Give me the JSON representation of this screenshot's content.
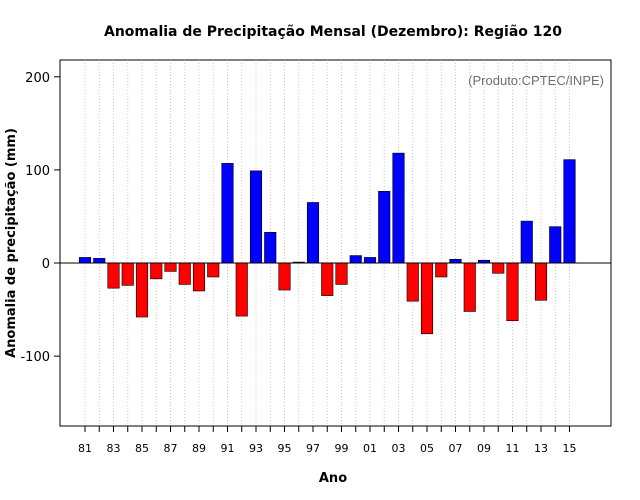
{
  "chart_data": {
    "type": "bar",
    "title": "Anomalia de Precipitação Mensal (Dezembro): Região 120",
    "xlabel": "Ano",
    "ylabel": "Anomalia de precipitação (mm)",
    "credit": "(Produto:CPTEC/INPE)",
    "ylim": [
      -175,
      218
    ],
    "yticks": [
      -100,
      0,
      100,
      200
    ],
    "ytick_labels": [
      "-100",
      "0",
      "100",
      "200"
    ],
    "xtick_labels": [
      "81",
      "83",
      "85",
      "87",
      "89",
      "91",
      "93",
      "95",
      "97",
      "99",
      "01",
      "03",
      "05",
      "07",
      "09",
      "11",
      "13",
      "15"
    ],
    "grid": true,
    "categories": [
      "1981",
      "1982",
      "1983",
      "1984",
      "1985",
      "1986",
      "1987",
      "1988",
      "1989",
      "1990",
      "1991",
      "1992",
      "1993",
      "1994",
      "1995",
      "1996",
      "1997",
      "1998",
      "1999",
      "2000",
      "2001",
      "2002",
      "2003",
      "2004",
      "2005",
      "2006",
      "2007",
      "2008",
      "2009",
      "2010",
      "2011",
      "2012",
      "2013",
      "2014",
      "2015"
    ],
    "values": [
      6,
      5,
      -27,
      -24,
      -58,
      -17,
      -9,
      -23,
      -30,
      -15,
      107,
      -57,
      99,
      33,
      -29,
      1,
      65,
      -35,
      -23,
      8,
      6,
      77,
      118,
      -41,
      -76,
      -15,
      4,
      -52,
      3,
      -11,
      -62,
      45,
      -40,
      39,
      111
    ],
    "colors": {
      "positive": "#0000ff",
      "negative": "#ff0000"
    }
  }
}
